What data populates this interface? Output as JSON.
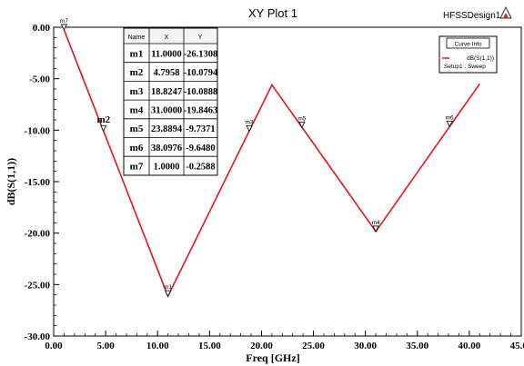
{
  "chart_data": {
    "type": "line",
    "title": "XY Plot 1",
    "design_name": "HFSSDesign1",
    "xlabel": "Freq [GHz]",
    "ylabel": "dB(S(1,1))",
    "xlim": [
      0,
      45
    ],
    "ylim": [
      -30,
      0
    ],
    "x_ticks": [
      "0.00",
      "5.00",
      "10.00",
      "15.00",
      "20.00",
      "25.00",
      "30.00",
      "35.00",
      "40.00",
      "45.00"
    ],
    "x_tick_values": [
      0,
      5,
      10,
      15,
      20,
      25,
      30,
      35,
      40,
      45
    ],
    "y_ticks": [
      "0.00",
      "-5.00",
      "-10.00",
      "-15.00",
      "-20.00",
      "-25.00",
      "-30.00"
    ],
    "y_tick_values": [
      0,
      -5,
      -10,
      -15,
      -20,
      -25,
      -30
    ],
    "grid": false,
    "series": [
      {
        "name": "dB(S(1,1))",
        "color": "#e8141b",
        "x": [
          1.0,
          11.0,
          21.0,
          31.0,
          41.0
        ],
        "y": [
          -0.2588,
          -26.1308,
          -5.6,
          -19.8463,
          -5.5
        ]
      }
    ],
    "legend": {
      "placement": "top-right",
      "title": "Curve Info",
      "entry_label": "dB(S(1,1))",
      "entry_sublabel": "Setup1 : Sweep"
    },
    "marker_table": {
      "headers": [
        "Name",
        "X",
        "Y"
      ],
      "rows": [
        {
          "name": "m1",
          "x": "11.0000",
          "y": "-26.1308"
        },
        {
          "name": "m2",
          "x": "4.7958",
          "y": "-10.0794"
        },
        {
          "name": "m3",
          "x": "18.8247",
          "y": "-10.0888"
        },
        {
          "name": "m4",
          "x": "31.0000",
          "y": "-19.8463"
        },
        {
          "name": "m5",
          "x": "23.8894",
          "y": "-9.7371"
        },
        {
          "name": "m6",
          "x": "38.0976",
          "y": "-9.6480"
        },
        {
          "name": "m7",
          "x": "1.0000",
          "y": "-0.2588"
        }
      ]
    },
    "markers": [
      {
        "name": "m1",
        "x": 11.0,
        "y": -26.1308
      },
      {
        "name": "m2",
        "x": 4.7958,
        "y": -10.0794
      },
      {
        "name": "m3",
        "x": 18.8247,
        "y": -10.0888
      },
      {
        "name": "m4",
        "x": 31.0,
        "y": -19.8463
      },
      {
        "name": "m5",
        "x": 23.8894,
        "y": -9.7371
      },
      {
        "name": "m6",
        "x": 38.0976,
        "y": -9.648
      },
      {
        "name": "m7",
        "x": 1.0,
        "y": -0.2588
      }
    ]
  }
}
